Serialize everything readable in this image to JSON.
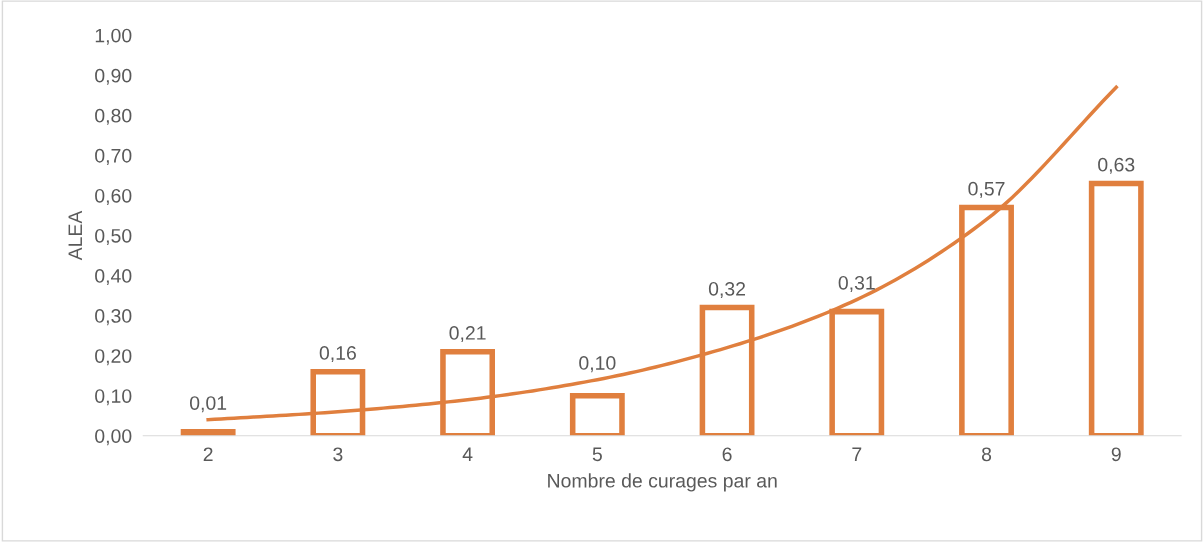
{
  "chart_data": {
    "type": "bar",
    "xlabel": "Nombre de curages par an",
    "ylabel": "ALEA",
    "categories": [
      "2",
      "3",
      "4",
      "5",
      "6",
      "7",
      "8",
      "9"
    ],
    "ylim": [
      0,
      1
    ],
    "yticks": [
      {
        "value": 0,
        "label": "0,00"
      },
      {
        "value": 0.1,
        "label": "0,10"
      },
      {
        "value": 0.2,
        "label": "0,20"
      },
      {
        "value": 0.3,
        "label": "0,30"
      },
      {
        "value": 0.4,
        "label": "0,40"
      },
      {
        "value": 0.5,
        "label": "0,50"
      },
      {
        "value": 0.6,
        "label": "0,60"
      },
      {
        "value": 0.7,
        "label": "0,70"
      },
      {
        "value": 0.8,
        "label": "0,80"
      },
      {
        "value": 0.9,
        "label": "0,90"
      },
      {
        "value": 1,
        "label": "1,00"
      }
    ],
    "grid": false,
    "series": [
      {
        "color": "#e07f3e",
        "values": [
          0.01,
          0.16,
          0.21,
          0.1,
          0.32,
          0.31,
          0.57,
          0.63
        ],
        "value_labels": [
          "0,01",
          "0,16",
          "0,21",
          "0,10",
          "0,32",
          "0,31",
          "0,57",
          "0,63"
        ]
      },
      {
        "type": "line",
        "color": "#e07f3e",
        "x": [
          "2",
          "3",
          "4",
          "5",
          "6",
          "7",
          "8",
          "9"
        ],
        "values": [
          0.04,
          0.06,
          0.09,
          0.14,
          0.22,
          0.34,
          0.54,
          0.87
        ]
      }
    ]
  }
}
